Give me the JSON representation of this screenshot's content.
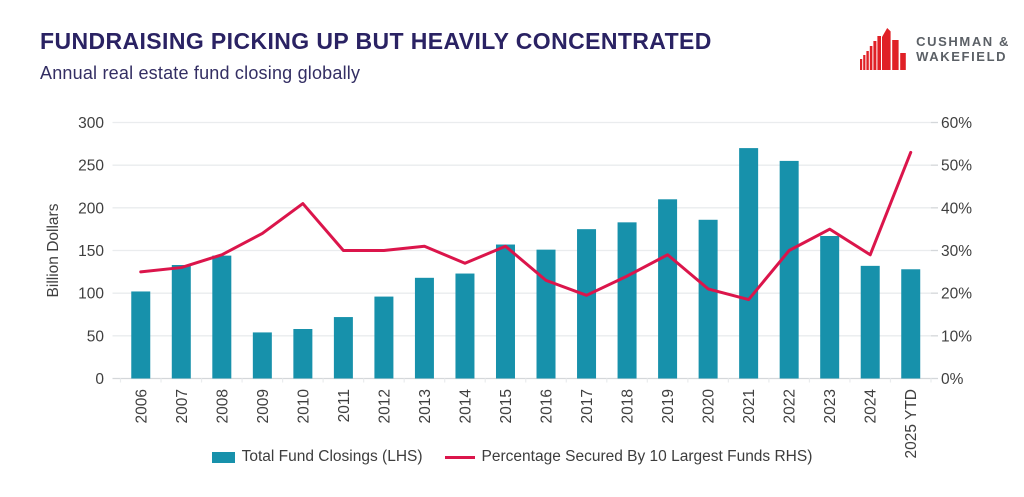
{
  "header": {
    "title": "FUNDRAISING PICKING UP BUT HEAVILY CONCENTRATED",
    "subtitle": "Annual real estate fund closing globally",
    "logo": {
      "line1": "CUSHMAN &",
      "line2": "WAKEFIELD"
    }
  },
  "colors": {
    "bar": "#1791ab",
    "line": "#db154b",
    "title": "#2a2263",
    "logo_red": "#e02026",
    "logo_text": "#5b6066",
    "axis_text": "#3f3f3f",
    "grid": "#eaecee",
    "axis_line": "#d4d7da"
  },
  "chart_data": {
    "type": "bar",
    "combo": "bar+line",
    "title": "Annual real estate fund closing globally",
    "categories": [
      "2006",
      "2007",
      "2008",
      "2009",
      "2010",
      "2011",
      "2012",
      "2013",
      "2014",
      "2015",
      "2016",
      "2017",
      "2018",
      "2019",
      "2020",
      "2021",
      "2022",
      "2023",
      "2024",
      "2025 YTD"
    ],
    "series": [
      {
        "name": "Total Fund Closings (LHS)",
        "type": "bar",
        "axis": "left",
        "values": [
          102,
          133,
          144,
          54,
          58,
          72,
          96,
          118,
          123,
          157,
          151,
          175,
          183,
          210,
          186,
          270,
          255,
          167,
          132,
          128
        ]
      },
      {
        "name": "Percentage Secured By 10 Largest Funds RHS)",
        "type": "line",
        "axis": "right",
        "values": [
          25,
          26,
          29,
          34,
          41,
          30,
          30,
          31,
          27,
          31,
          23,
          19.5,
          24,
          29,
          21,
          18.5,
          30,
          35,
          29,
          53
        ]
      }
    ],
    "left_axis": {
      "label": "Billion Dollars",
      "min": 0,
      "max": 300,
      "ticks": [
        0,
        50,
        100,
        150,
        200,
        250,
        300
      ]
    },
    "right_axis": {
      "min": 0,
      "max": 60,
      "ticks": [
        "0%",
        "10%",
        "20%",
        "30%",
        "40%",
        "50%",
        "60%"
      ]
    },
    "grid": true,
    "legend_position": "bottom"
  }
}
